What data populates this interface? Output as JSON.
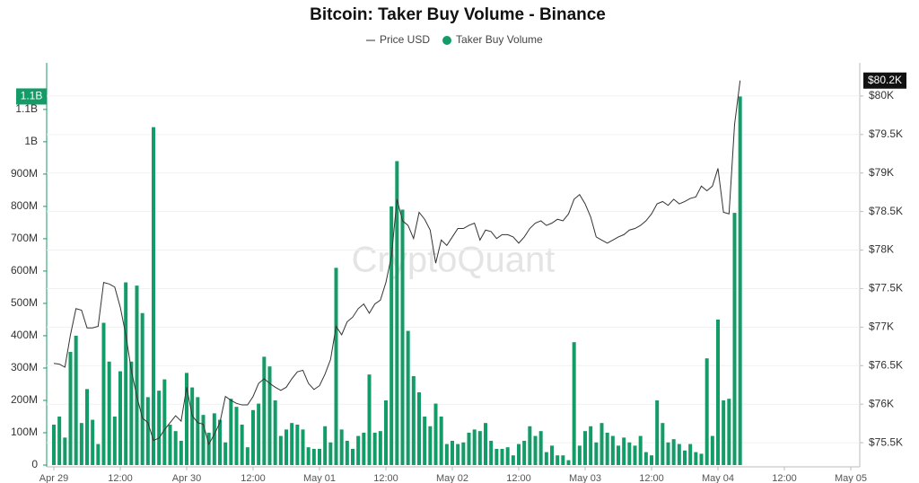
{
  "chart_data": {
    "type": "combo",
    "title": "Bitcoin: Taker Buy Volume - Binance",
    "watermark": "CryptoQuant",
    "grid": true,
    "x": [
      "Apr 29 00:00",
      "Apr 29 01:00",
      "Apr 29 02:00",
      "Apr 29 03:00",
      "Apr 29 04:00",
      "Apr 29 05:00",
      "Apr 29 06:00",
      "Apr 29 07:00",
      "Apr 29 08:00",
      "Apr 29 09:00",
      "Apr 29 10:00",
      "Apr 29 11:00",
      "Apr 29 12:00",
      "Apr 29 13:00",
      "Apr 29 14:00",
      "Apr 29 15:00",
      "Apr 29 16:00",
      "Apr 29 17:00",
      "Apr 29 18:00",
      "Apr 29 19:00",
      "Apr 29 20:00",
      "Apr 29 21:00",
      "Apr 29 22:00",
      "Apr 29 23:00",
      "Apr 30 00:00",
      "Apr 30 01:00",
      "Apr 30 02:00",
      "Apr 30 03:00",
      "Apr 30 04:00",
      "Apr 30 05:00",
      "Apr 30 06:00",
      "Apr 30 07:00",
      "Apr 30 08:00",
      "Apr 30 09:00",
      "Apr 30 10:00",
      "Apr 30 11:00",
      "Apr 30 12:00",
      "Apr 30 13:00",
      "Apr 30 14:00",
      "Apr 30 15:00",
      "Apr 30 16:00",
      "Apr 30 17:00",
      "Apr 30 18:00",
      "Apr 30 19:00",
      "Apr 30 20:00",
      "Apr 30 21:00",
      "Apr 30 22:00",
      "Apr 30 23:00",
      "May 01 00:00",
      "May 01 01:00",
      "May 01 02:00",
      "May 01 03:00",
      "May 01 04:00",
      "May 01 05:00",
      "May 01 06:00",
      "May 01 07:00",
      "May 01 08:00",
      "May 01 09:00",
      "May 01 10:00",
      "May 01 11:00",
      "May 01 12:00",
      "May 01 13:00",
      "May 01 14:00",
      "May 01 15:00",
      "May 01 16:00",
      "May 01 17:00",
      "May 01 18:00",
      "May 01 19:00",
      "May 01 20:00",
      "May 01 21:00",
      "May 01 22:00",
      "May 01 23:00",
      "May 02 00:00",
      "May 02 01:00",
      "May 02 02:00",
      "May 02 03:00",
      "May 02 04:00",
      "May 02 05:00",
      "May 02 06:00",
      "May 02 07:00",
      "May 02 08:00",
      "May 02 09:00",
      "May 02 10:00",
      "May 02 11:00",
      "May 02 12:00",
      "May 02 13:00",
      "May 02 14:00",
      "May 02 15:00",
      "May 02 16:00",
      "May 02 17:00",
      "May 02 18:00",
      "May 02 19:00",
      "May 02 20:00",
      "May 02 21:00",
      "May 02 22:00",
      "May 02 23:00",
      "May 03 00:00",
      "May 03 01:00",
      "May 03 02:00",
      "May 03 03:00",
      "May 03 04:00",
      "May 03 05:00",
      "May 03 06:00",
      "May 03 07:00",
      "May 03 08:00",
      "May 03 09:00",
      "May 03 10:00",
      "May 03 11:00",
      "May 03 12:00",
      "May 03 13:00",
      "May 03 14:00",
      "May 03 15:00",
      "May 03 16:00",
      "May 03 17:00",
      "May 03 18:00",
      "May 03 19:00",
      "May 03 20:00",
      "May 03 21:00",
      "May 03 22:00",
      "May 03 23:00",
      "May 04 00:00",
      "May 04 01:00",
      "May 04 02:00",
      "May 04 03:00",
      "May 04 04:00"
    ],
    "series": [
      {
        "name": "Price USD",
        "type": "line",
        "axis": "y2",
        "color": "#333333",
        "last_label": "$80.2K",
        "values": [
          76530,
          76520,
          76480,
          76900,
          77240,
          77220,
          76990,
          76990,
          77010,
          77580,
          77560,
          77520,
          77260,
          76900,
          76440,
          76100,
          75820,
          75760,
          75530,
          75560,
          75670,
          75760,
          75850,
          75780,
          76220,
          75850,
          75760,
          75740,
          75480,
          75610,
          75760,
          76100,
          76050,
          76010,
          75990,
          75990,
          76100,
          76270,
          76330,
          76270,
          76220,
          76180,
          76220,
          76330,
          76420,
          76440,
          76270,
          76190,
          76240,
          76390,
          76580,
          77010,
          76900,
          77070,
          77130,
          77240,
          77300,
          77180,
          77300,
          77350,
          77580,
          77920,
          78660,
          78380,
          78320,
          78150,
          78490,
          78400,
          78260,
          77830,
          78130,
          78060,
          78170,
          78280,
          78280,
          78320,
          78350,
          78130,
          78260,
          78240,
          78150,
          78200,
          78200,
          78170,
          78090,
          78170,
          78280,
          78350,
          78380,
          78320,
          78350,
          78400,
          78380,
          78470,
          78660,
          78720,
          78600,
          78430,
          78170,
          78130,
          78090,
          78130,
          78170,
          78200,
          78260,
          78280,
          78320,
          78380,
          78470,
          78600,
          78630,
          78580,
          78660,
          78600,
          78630,
          78670,
          78690,
          78830,
          78770,
          78830,
          79060,
          78490,
          78470,
          79630,
          80200
        ]
      },
      {
        "name": "Taker Buy Volume",
        "type": "bar",
        "color": "#139c67",
        "last_label": "1.1B",
        "values": [
          125000000,
          150000000,
          85000000,
          350000000,
          400000000,
          130000000,
          235000000,
          140000000,
          65000000,
          440000000,
          320000000,
          150000000,
          290000000,
          565000000,
          320000000,
          555000000,
          470000000,
          210000000,
          1045000000,
          230000000,
          265000000,
          125000000,
          105000000,
          75000000,
          285000000,
          240000000,
          210000000,
          155000000,
          100000000,
          160000000,
          140000000,
          70000000,
          205000000,
          180000000,
          125000000,
          55000000,
          170000000,
          190000000,
          335000000,
          305000000,
          200000000,
          90000000,
          110000000,
          130000000,
          125000000,
          110000000,
          55000000,
          50000000,
          50000000,
          120000000,
          70000000,
          610000000,
          110000000,
          75000000,
          50000000,
          90000000,
          100000000,
          280000000,
          100000000,
          105000000,
          200000000,
          800000000,
          940000000,
          790000000,
          415000000,
          275000000,
          225000000,
          150000000,
          120000000,
          190000000,
          150000000,
          65000000,
          75000000,
          65000000,
          70000000,
          100000000,
          110000000,
          105000000,
          130000000,
          75000000,
          50000000,
          50000000,
          55000000,
          30000000,
          65000000,
          75000000,
          120000000,
          90000000,
          105000000,
          40000000,
          60000000,
          30000000,
          30000000,
          15000000,
          380000000,
          60000000,
          105000000,
          120000000,
          70000000,
          130000000,
          100000000,
          90000000,
          60000000,
          85000000,
          70000000,
          60000000,
          90000000,
          40000000,
          30000000,
          200000000,
          130000000,
          70000000,
          80000000,
          65000000,
          45000000,
          65000000,
          40000000,
          35000000,
          330000000,
          90000000,
          450000000,
          200000000,
          205000000,
          780000000,
          1140000000
        ]
      }
    ],
    "xticks": [
      {
        "value": "Apr 29 00:00",
        "label": "Apr 29"
      },
      {
        "value": "Apr 29 12:00",
        "label": "12:00"
      },
      {
        "value": "Apr 30 00:00",
        "label": "Apr 30"
      },
      {
        "value": "Apr 30 12:00",
        "label": "12:00"
      },
      {
        "value": "May 01 00:00",
        "label": "May 01"
      },
      {
        "value": "May 01 12:00",
        "label": "12:00"
      },
      {
        "value": "May 02 00:00",
        "label": "May 02"
      },
      {
        "value": "May 02 12:00",
        "label": "12:00"
      },
      {
        "value": "May 03 00:00",
        "label": "May 03"
      },
      {
        "value": "May 03 12:00",
        "label": "12:00"
      },
      {
        "value": "May 04 00:00",
        "label": "May 04"
      },
      {
        "value": "May 04 12:00",
        "label": "12:00"
      },
      {
        "value": "May 05 00:00",
        "label": "May 05"
      }
    ],
    "ylim": [
      0,
      1244000000
    ],
    "yticks": [
      0,
      {
        "value": 100000000,
        "label": "100M"
      },
      {
        "value": 200000000,
        "label": "200M"
      },
      {
        "value": 300000000,
        "label": "300M"
      },
      {
        "value": 400000000,
        "label": "400M"
      },
      {
        "value": 500000000,
        "label": "500M"
      },
      {
        "value": 600000000,
        "label": "600M"
      },
      {
        "value": 700000000,
        "label": "700M"
      },
      {
        "value": 800000000,
        "label": "800M"
      },
      {
        "value": 900000000,
        "label": "900M"
      },
      {
        "value": 1000000000,
        "label": "1B"
      },
      {
        "value": 1100000000,
        "label": "1.1B"
      }
    ],
    "y2lim": [
      75210,
      80430
    ],
    "y2ticks": [
      {
        "value": 75500,
        "label": "$75.5K"
      },
      {
        "value": 76000,
        "label": "$76K"
      },
      {
        "value": 76500,
        "label": "$76.5K"
      },
      {
        "value": 77000,
        "label": "$77K"
      },
      {
        "value": 77500,
        "label": "$77.5K"
      },
      {
        "value": 78000,
        "label": "$78K"
      },
      {
        "value": 78500,
        "label": "$78.5K"
      },
      {
        "value": 79000,
        "label": "$79K"
      },
      {
        "value": 79500,
        "label": "$79.5K"
      },
      {
        "value": 80000,
        "label": "$80K"
      }
    ]
  }
}
